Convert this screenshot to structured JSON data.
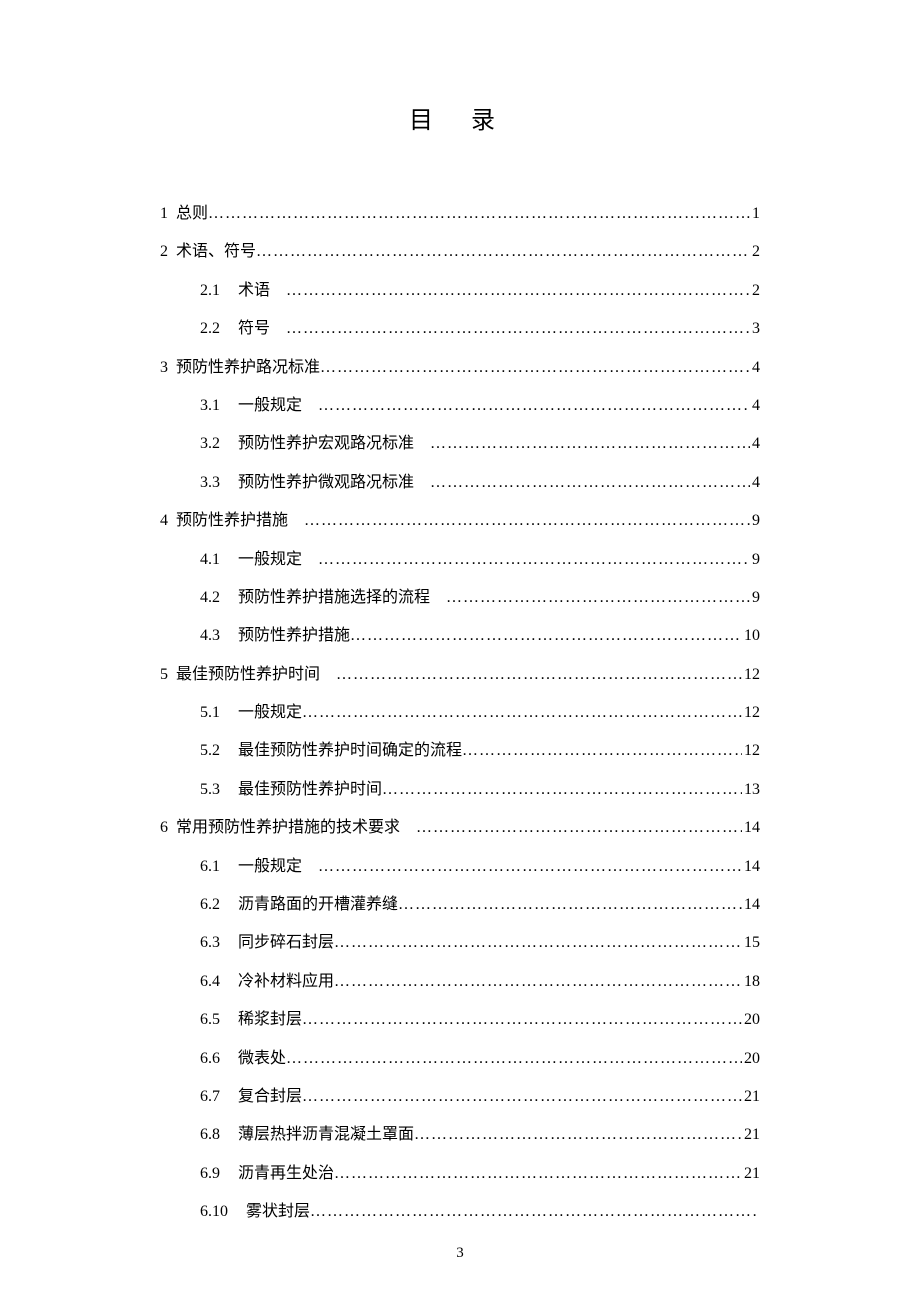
{
  "title": "目 录",
  "page_number": "3",
  "entries": [
    {
      "level": 0,
      "num": "1",
      "label": "总则",
      "page": "1",
      "gap": false
    },
    {
      "level": 0,
      "num": "2",
      "label": "术语、符号",
      "page": "2",
      "gap": false
    },
    {
      "level": 1,
      "num": "2.1",
      "label": "术语",
      "page": "2",
      "gap": true
    },
    {
      "level": 1,
      "num": "2.2",
      "label": "符号",
      "page": "3",
      "gap": true
    },
    {
      "level": 0,
      "num": "3",
      "label": "预防性养护路况标准",
      "page": "4",
      "gap": false
    },
    {
      "level": 1,
      "num": "3.1",
      "label": "一般规定",
      "page": "4",
      "gap": true
    },
    {
      "level": 1,
      "num": "3.2",
      "label": "预防性养护宏观路况标准",
      "page": "4",
      "gap": true
    },
    {
      "level": 1,
      "num": "3.3",
      "label": "预防性养护微观路况标准",
      "page": "4",
      "gap": true
    },
    {
      "level": 0,
      "num": "4",
      "label": "预防性养护措施",
      "page": "9",
      "gap": true
    },
    {
      "level": 1,
      "num": "4.1",
      "label": "一般规定",
      "page": "9",
      "gap": true
    },
    {
      "level": 1,
      "num": "4.2",
      "label": "预防性养护措施选择的流程",
      "page": "9",
      "gap": true
    },
    {
      "level": 1,
      "num": "4.3",
      "label": "预防性养护措施",
      "page": "10",
      "gap": false
    },
    {
      "level": 0,
      "num": "5",
      "label": "最佳预防性养护时间",
      "page": "12",
      "gap": true
    },
    {
      "level": 1,
      "num": "5.1",
      "label": "一般规定",
      "page": "12",
      "gap": false
    },
    {
      "level": 1,
      "num": "5.2",
      "label": "最佳预防性养护时间确定的流程",
      "page": "12",
      "gap": false
    },
    {
      "level": 1,
      "num": "5.3",
      "label": "最佳预防性养护时间",
      "page": "13",
      "gap": false
    },
    {
      "level": 0,
      "num": "6",
      "label": "常用预防性养护措施的技术要求",
      "page": "14",
      "gap": true
    },
    {
      "level": 1,
      "num": "6.1",
      "label": "一般规定",
      "page": "14",
      "gap": true
    },
    {
      "level": 1,
      "num": "6.2",
      "label": "沥青路面的开槽灌养缝",
      "page": "14",
      "gap": false
    },
    {
      "level": 1,
      "num": "6.3",
      "label": "同步碎石封层",
      "page": "15",
      "gap": false
    },
    {
      "level": 1,
      "num": "6.4",
      "label": "冷补材料应用",
      "page": "18",
      "gap": false
    },
    {
      "level": 1,
      "num": "6.5",
      "label": "稀浆封层",
      "page": "20",
      "gap": false
    },
    {
      "level": 1,
      "num": "6.6",
      "label": "微表处",
      "page": "20",
      "gap": false
    },
    {
      "level": 1,
      "num": "6.7",
      "label": "复合封层",
      "page": "21",
      "gap": false
    },
    {
      "level": 1,
      "num": "6.8",
      "label": "薄层热拌沥青混凝土罩面",
      "page": "21",
      "gap": false
    },
    {
      "level": 1,
      "num": "6.9",
      "label": "沥青再生处治",
      "page": "21",
      "gap": false
    },
    {
      "level": 1,
      "num": "6.10",
      "label": "雾状封层",
      "page": "",
      "gap": false
    }
  ]
}
